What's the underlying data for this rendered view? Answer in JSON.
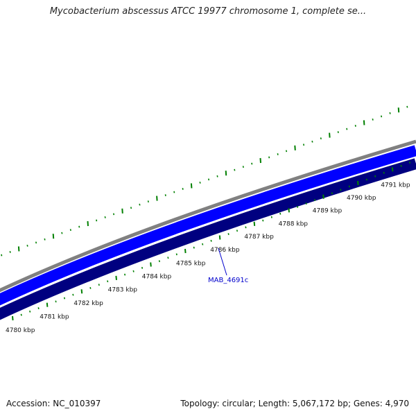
{
  "title": "Mycobacterium abscessus ATCC 19977 chromosome 1, complete se...",
  "accession": "Accession: NC_010397",
  "summary": "Topology: circular; Length: 5,067,172 bp; Genes: 4,970",
  "scale": {
    "labels": [
      "4780 kbp",
      "4781 kbp",
      "4782 kbp",
      "4783 kbp",
      "4784 kbp",
      "4785 kbp",
      "4786 kbp",
      "4787 kbp",
      "4788 kbp",
      "4789 kbp",
      "4790 kbp",
      "4791 kbp"
    ]
  },
  "gene": {
    "label": "MAB_4691c"
  },
  "colors": {
    "ticks": "#008000",
    "outer_ring": "#808080",
    "forward_strand": "#0000ff",
    "reverse_strand": "#000080",
    "gene_label": "#0000cc"
  }
}
